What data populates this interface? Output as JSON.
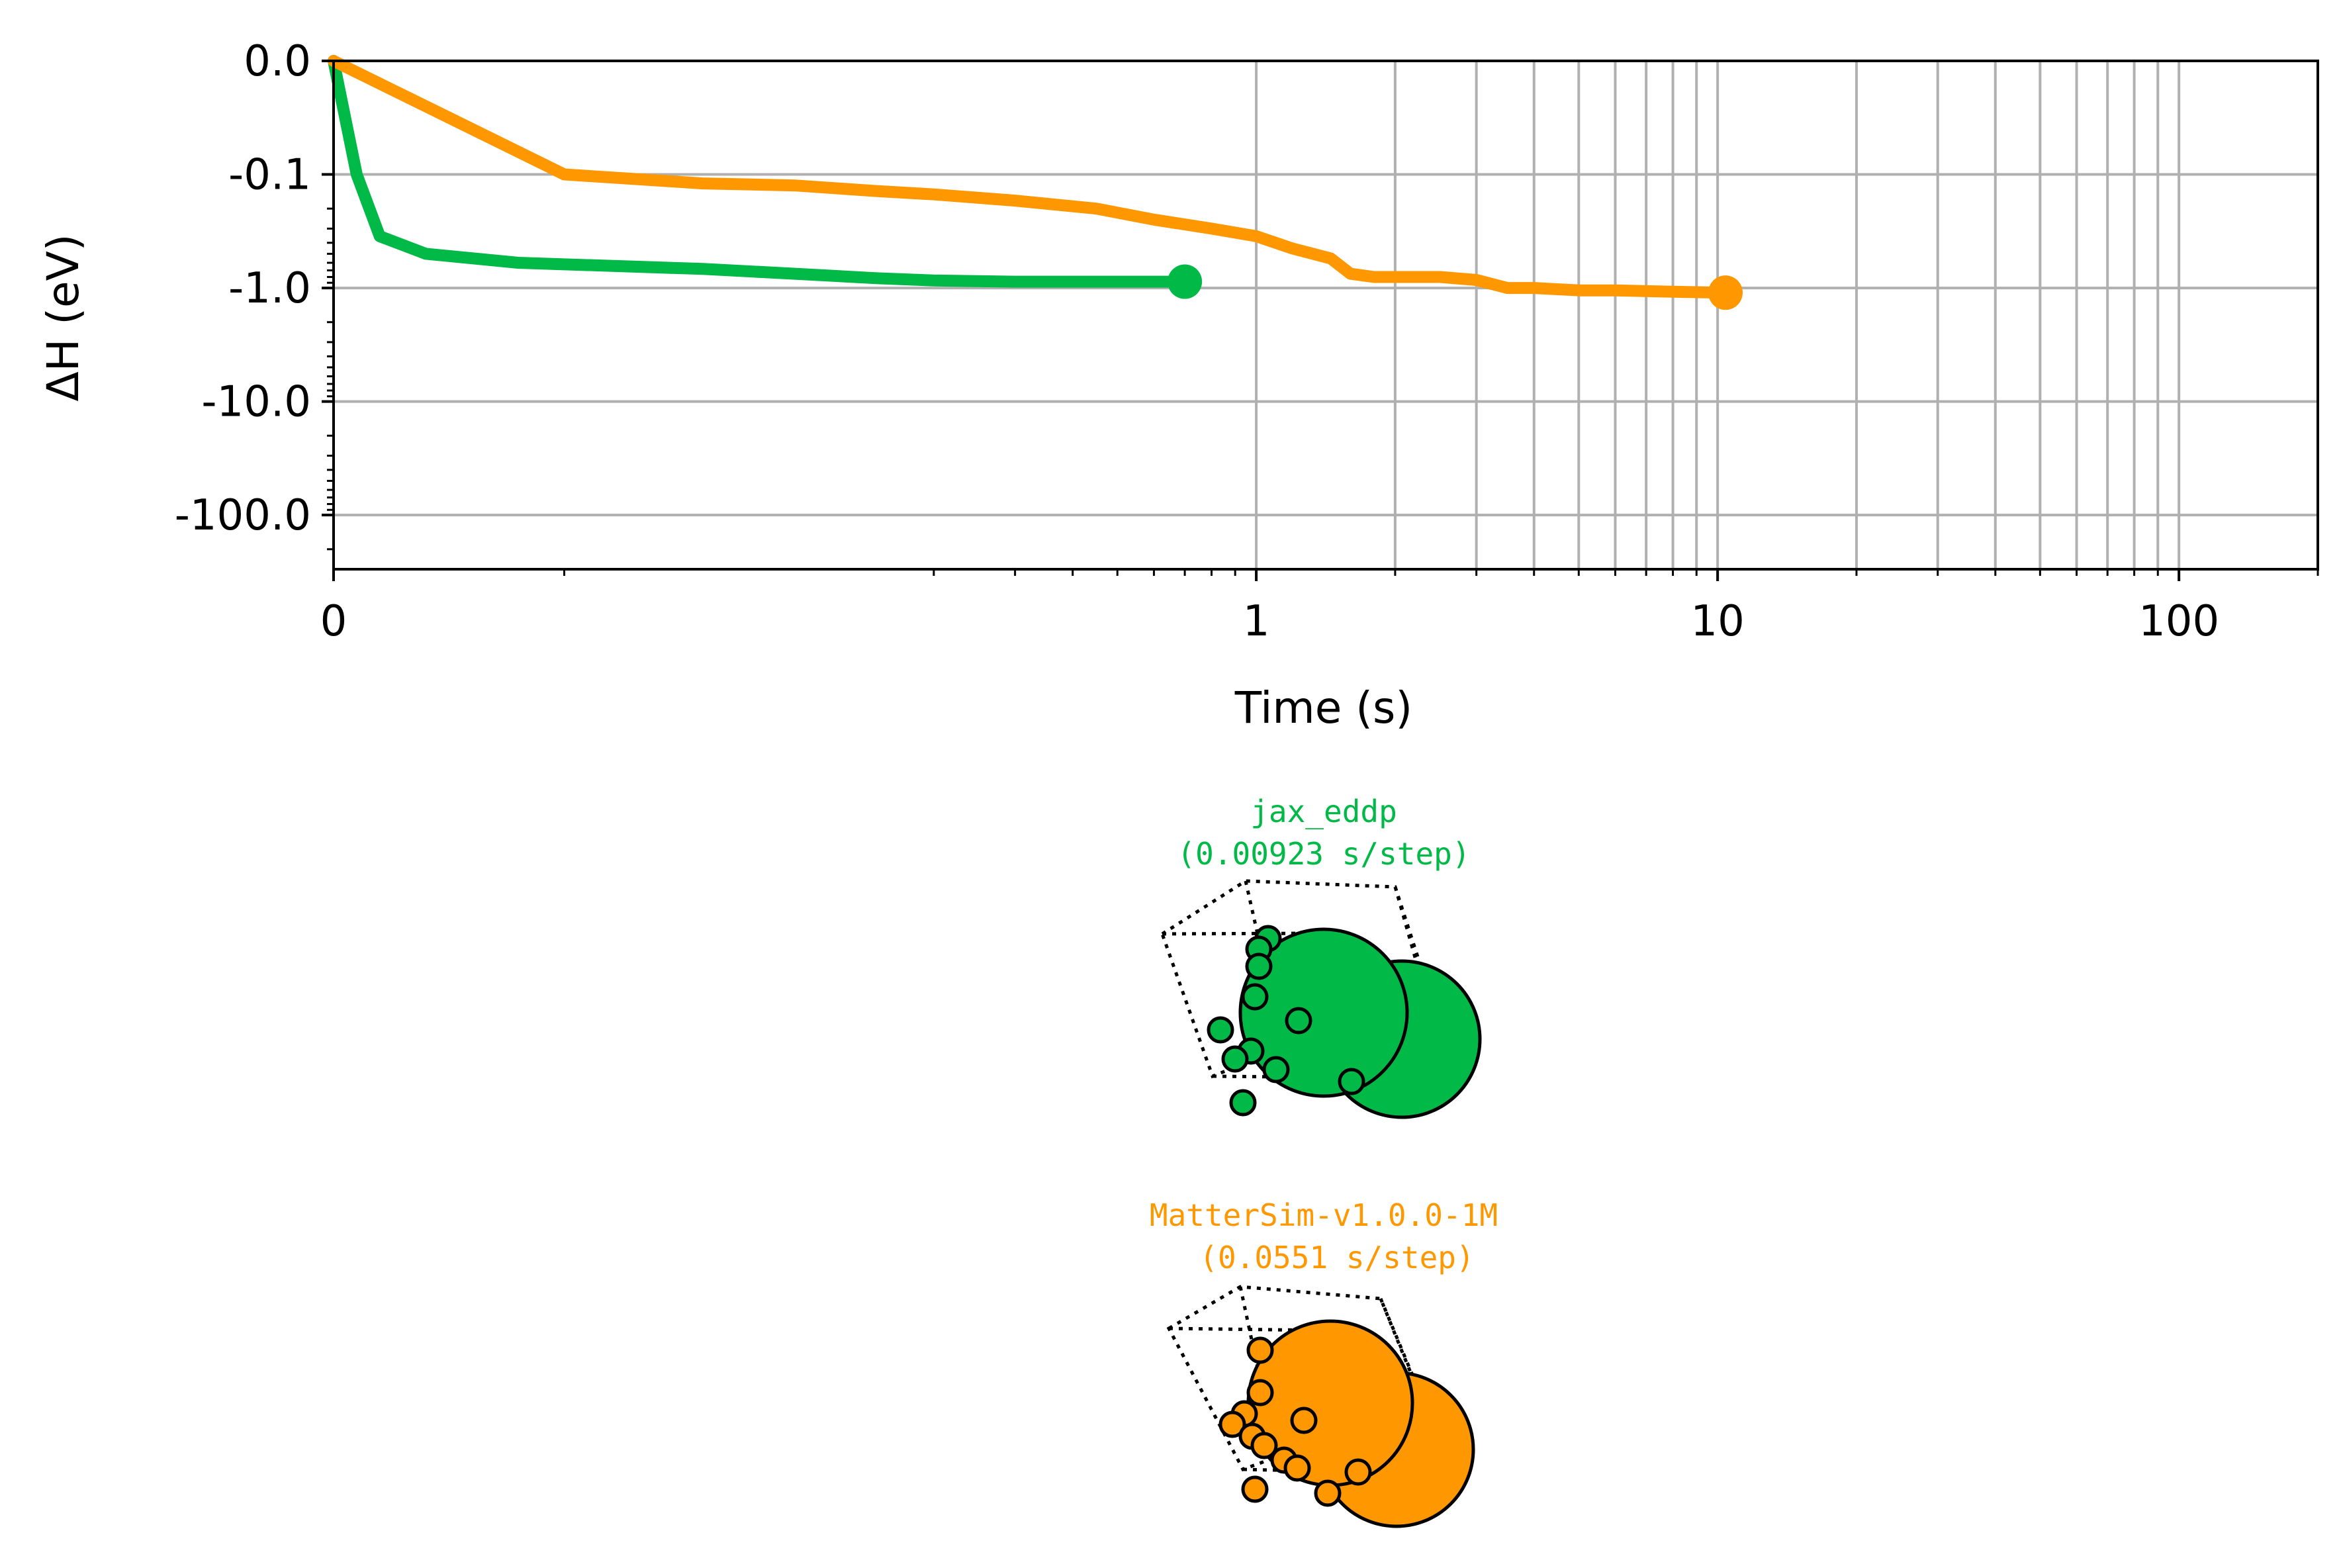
{
  "chart_data": {
    "type": "line",
    "title": "",
    "xlabel": "Time (s)",
    "ylabel": "ΔH (eV)",
    "x_ticks": [
      {
        "value": 0,
        "label": "0"
      },
      {
        "value": 1,
        "label": "1"
      },
      {
        "value": 10,
        "label": "10"
      },
      {
        "value": 100,
        "label": "100"
      }
    ],
    "y_ticks": [
      {
        "value": 0,
        "label": "0.0"
      },
      {
        "value": -0.1,
        "label": "-0.1"
      },
      {
        "value": -1,
        "label": "-1.0"
      },
      {
        "value": -10,
        "label": "-10.0"
      },
      {
        "value": -100,
        "label": "-100.0"
      }
    ],
    "xlim": [
      0,
      200
    ],
    "ylim": [
      0,
      -300
    ],
    "x_scale": "symlog",
    "y_scale": "symlog",
    "grid": true,
    "series": [
      {
        "name": "jax_eddp",
        "color": "#00b946",
        "x": [
          0,
          0.005,
          0.01,
          0.02,
          0.04,
          0.08,
          0.1,
          0.15,
          0.2,
          0.3,
          0.5,
          0.7
        ],
        "y": [
          0,
          -0.1,
          -0.35,
          -0.5,
          -0.6,
          -0.68,
          -0.75,
          -0.82,
          -0.86,
          -0.88,
          -0.88,
          -0.88
        ]
      },
      {
        "name": "MatterSim-v1.0.0-1M",
        "color": "#ff9800",
        "x": [
          0,
          0.05,
          0.08,
          0.1,
          0.15,
          0.2,
          0.3,
          0.45,
          0.6,
          0.8,
          1.0,
          1.2,
          1.45,
          1.6,
          1.8,
          2.0,
          2.5,
          3.0,
          3.5,
          4.0,
          5.0,
          6.0,
          8.0,
          10.4
        ],
        "y": [
          0,
          -0.1,
          -0.12,
          -0.125,
          -0.14,
          -0.15,
          -0.17,
          -0.2,
          -0.25,
          -0.3,
          -0.35,
          -0.45,
          -0.55,
          -0.75,
          -0.8,
          -0.8,
          -0.8,
          -0.85,
          -1.0,
          -1.0,
          -1.05,
          -1.05,
          -1.08,
          -1.1
        ]
      }
    ],
    "structures": [
      {
        "label": "jax_eddp",
        "subtitle": "(0.00923 s/step)",
        "color": "#00b946"
      },
      {
        "label": "MatterSim-v1.0.0-1M",
        "subtitle": "(0.0551 s/step)",
        "color": "#ff9800"
      }
    ]
  }
}
